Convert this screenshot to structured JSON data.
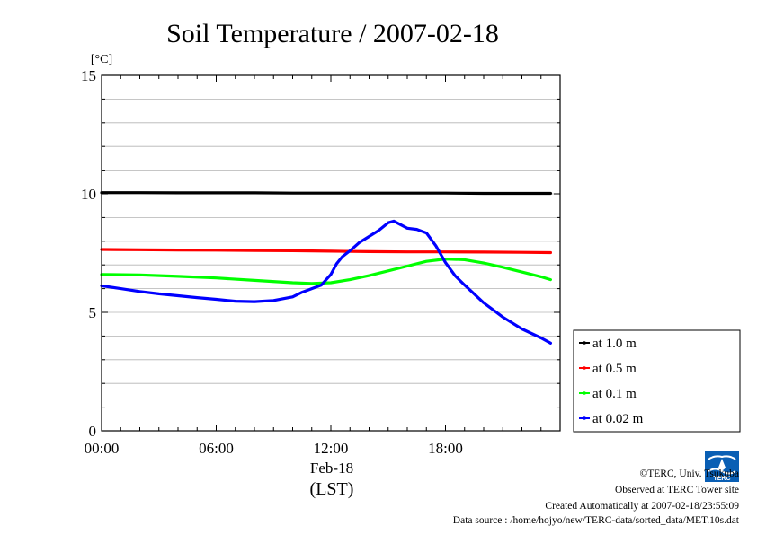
{
  "chart_data": {
    "type": "line",
    "title": "Soil Temperature / 2007-02-18",
    "ylabel": "[°C]",
    "xlabel": "(LST)",
    "date_label": "Feb-18",
    "ylim": [
      0,
      15
    ],
    "xlim": [
      0,
      23.5
    ],
    "yticks": [
      0,
      5,
      10,
      15
    ],
    "ytick_labels": [
      "0",
      "5",
      "10",
      "15"
    ],
    "xticks": [
      0,
      6,
      12,
      18
    ],
    "xtick_labels": [
      "00:00",
      "06:00",
      "12:00",
      "18:00"
    ],
    "grid": true,
    "legend_position": "right-bottom, outside plot",
    "series": [
      {
        "name": "at 1.0 m",
        "color": "#000000",
        "x": [
          0,
          2,
          4,
          6,
          8,
          10,
          12,
          14,
          16,
          18,
          20,
          22,
          23.5
        ],
        "y": [
          10.05,
          10.05,
          10.04,
          10.04,
          10.04,
          10.03,
          10.03,
          10.03,
          10.03,
          10.03,
          10.02,
          10.02,
          10.02
        ]
      },
      {
        "name": "at 0.5 m",
        "color": "#ff0000",
        "x": [
          0,
          2,
          4,
          6,
          8,
          10,
          12,
          14,
          16,
          18,
          20,
          22,
          23.5
        ],
        "y": [
          7.65,
          7.64,
          7.63,
          7.62,
          7.61,
          7.6,
          7.58,
          7.56,
          7.55,
          7.55,
          7.54,
          7.53,
          7.52
        ]
      },
      {
        "name": "at 0.1 m",
        "color": "#00ff00",
        "x": [
          0,
          2,
          4,
          6,
          8,
          10,
          11,
          12,
          13,
          14,
          15,
          16,
          17,
          18,
          19,
          20,
          21,
          22,
          23,
          23.5
        ],
        "y": [
          6.6,
          6.58,
          6.52,
          6.45,
          6.35,
          6.25,
          6.22,
          6.25,
          6.38,
          6.55,
          6.75,
          6.95,
          7.15,
          7.25,
          7.22,
          7.08,
          6.9,
          6.7,
          6.5,
          6.38
        ]
      },
      {
        "name": "at 0.02 m",
        "color": "#0000ff",
        "x": [
          0,
          1,
          2,
          3,
          4,
          5,
          6,
          7,
          8,
          9,
          10,
          10.5,
          11,
          11.5,
          12,
          12.3,
          12.6,
          13,
          13.5,
          14,
          14.5,
          15,
          15.3,
          15.6,
          16,
          16.5,
          17,
          17.5,
          18,
          18.5,
          19,
          20,
          21,
          22,
          23,
          23.5
        ],
        "y": [
          6.12,
          6.0,
          5.88,
          5.78,
          5.7,
          5.62,
          5.55,
          5.47,
          5.45,
          5.5,
          5.65,
          5.85,
          6.0,
          6.15,
          6.6,
          7.05,
          7.35,
          7.6,
          7.95,
          8.2,
          8.45,
          8.78,
          8.85,
          8.72,
          8.55,
          8.5,
          8.35,
          7.8,
          7.1,
          6.55,
          6.15,
          5.4,
          4.8,
          4.3,
          3.92,
          3.7
        ]
      }
    ]
  },
  "credits": {
    "copyright": "©TERC, Univ. Tsukuba",
    "observed": "Observed at TERC Tower site",
    "created": "Created Automatically at 2007-02-18/23:55:09",
    "source": "Data source : /home/hojyo/new/TERC-data/sorted_data/MET.10s.dat"
  },
  "logo": {
    "text": "TERC",
    "color": "#0a5fb4",
    "icon": "terc-logo-icon"
  }
}
